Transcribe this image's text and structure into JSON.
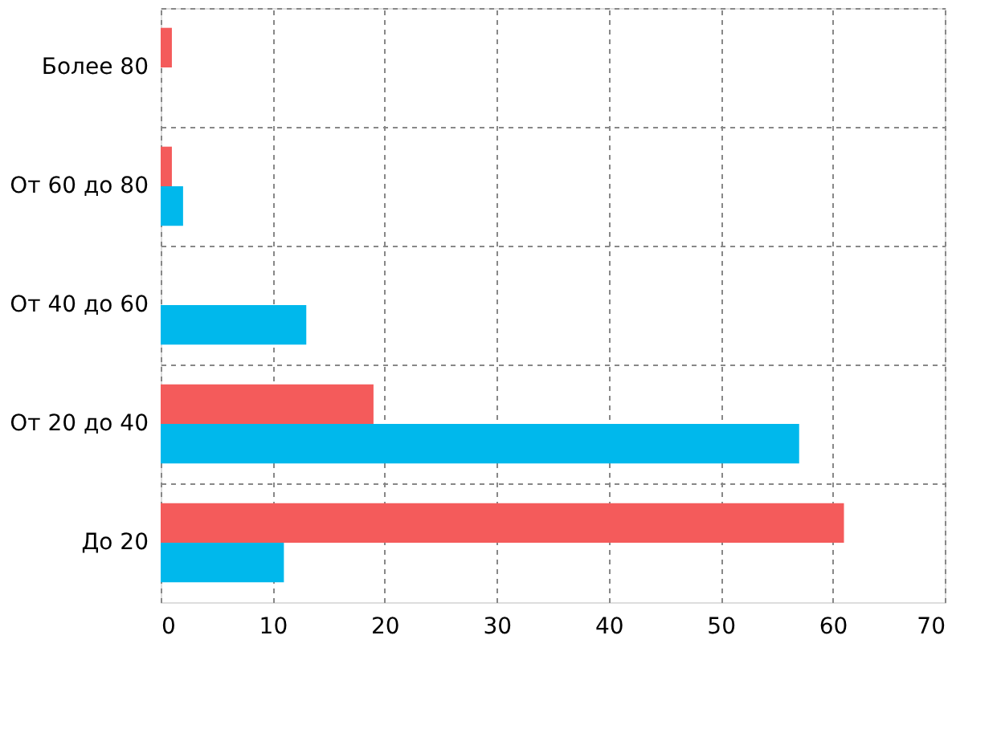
{
  "chart_data": {
    "type": "bar",
    "orientation": "horizontal",
    "categories": [
      "Более 80",
      "От 60 до 80",
      "От 40 до 60",
      "От 20 до 40",
      "До 20"
    ],
    "series": [
      {
        "color": "#f45b5b",
        "values": [
          1,
          1,
          null,
          19,
          61
        ]
      },
      {
        "color": "#00b8ec",
        "values": [
          null,
          2,
          13,
          57,
          11
        ]
      }
    ],
    "xlim": [
      0,
      70
    ],
    "xticks": [
      0,
      10,
      20,
      30,
      40,
      50,
      60,
      70
    ],
    "grid": true,
    "legend": false
  }
}
